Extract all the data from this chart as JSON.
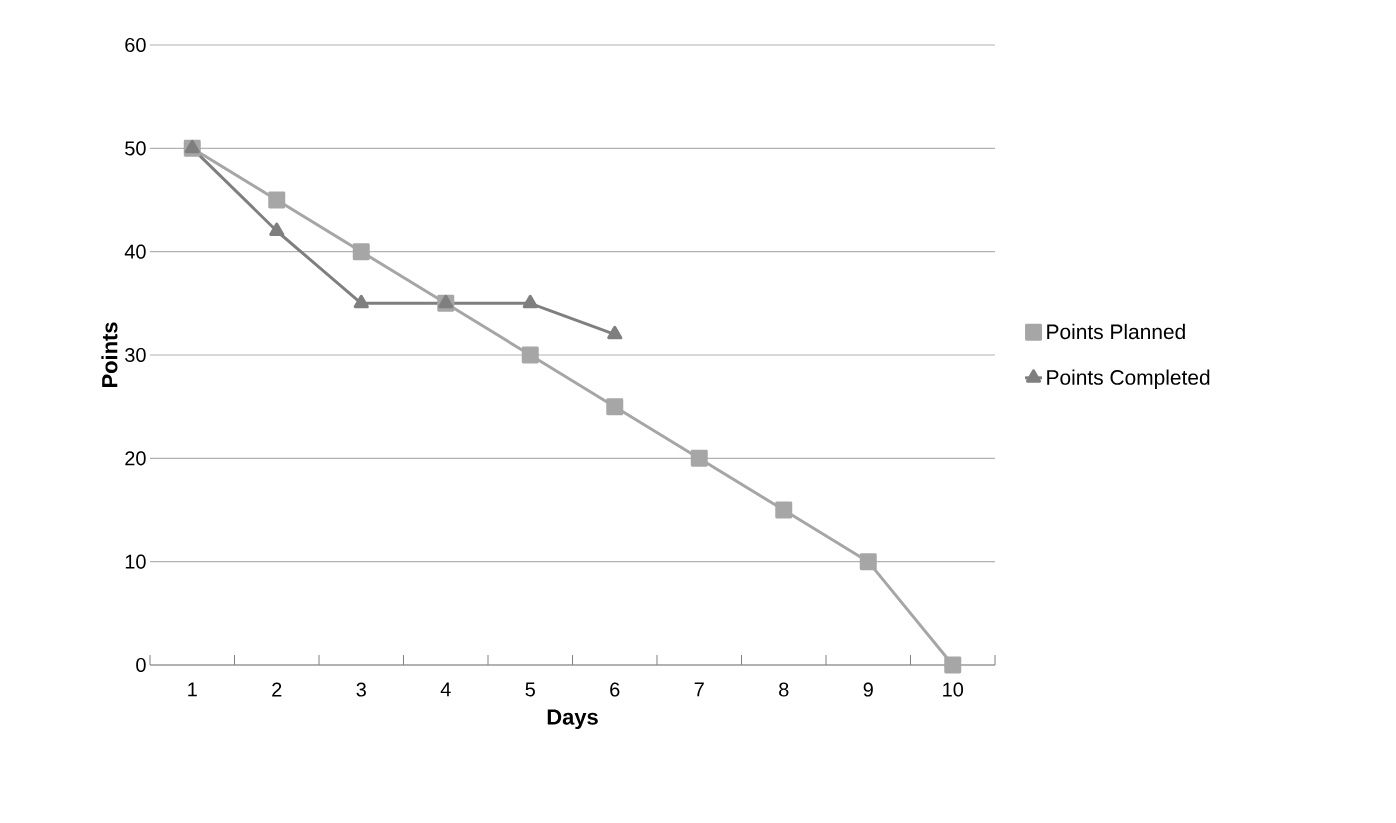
{
  "chart_data": {
    "type": "line",
    "xlabel": "Days",
    "ylabel": "Points",
    "categories": [
      "1",
      "2",
      "3",
      "4",
      "5",
      "6",
      "7",
      "8",
      "9",
      "10"
    ],
    "series": [
      {
        "name": "Points Planned",
        "color": "#a6a6a6",
        "marker": "square",
        "values": [
          50,
          45,
          40,
          35,
          30,
          25,
          20,
          15,
          10,
          0
        ]
      },
      {
        "name": "Points Completed",
        "color": "#7f7f7f",
        "marker": "triangle",
        "values": [
          50,
          42,
          35,
          35,
          35,
          32,
          null,
          null,
          null,
          null
        ]
      }
    ],
    "ylim": [
      0,
      60
    ],
    "yticks": [
      0,
      10,
      20,
      30,
      40,
      50,
      60
    ],
    "grid": "y",
    "legend": "right",
    "line_style": "solid"
  }
}
